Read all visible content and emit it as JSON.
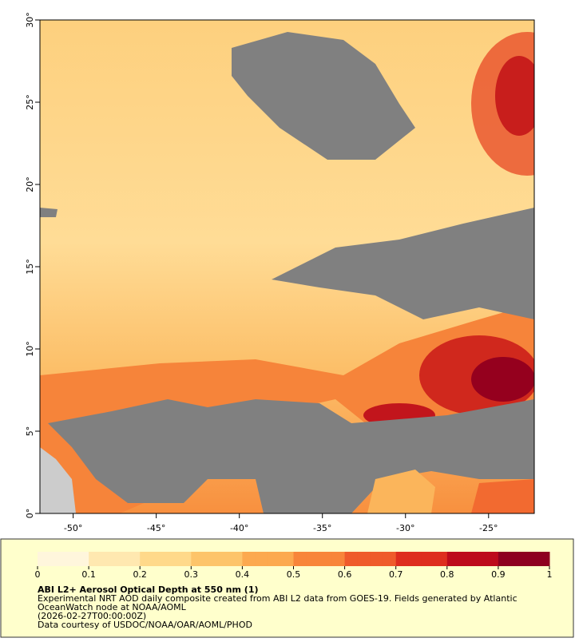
{
  "map": {
    "xlim": [
      -52,
      -22.25
    ],
    "ylim": [
      0,
      30
    ],
    "xticks": [
      {
        "value": -50,
        "label": "-50°"
      },
      {
        "value": -45,
        "label": "-45°"
      },
      {
        "value": -40,
        "label": "-40°"
      },
      {
        "value": -35,
        "label": "-35°"
      },
      {
        "value": -30,
        "label": "-30°"
      },
      {
        "value": -25,
        "label": "-25°"
      }
    ],
    "yticks": [
      {
        "value": 0,
        "label": "0°"
      },
      {
        "value": 5,
        "label": "5°"
      },
      {
        "value": 10,
        "label": "10°"
      },
      {
        "value": 15,
        "label": "15°"
      },
      {
        "value": 20,
        "label": "20°"
      },
      {
        "value": 25,
        "label": "25°"
      },
      {
        "value": 30,
        "label": "30°"
      }
    ]
  },
  "colorbar": {
    "range": [
      0,
      1
    ],
    "ticks": [
      0,
      0.1,
      0.2,
      0.3,
      0.4,
      0.5,
      0.6,
      0.7,
      0.8,
      0.9,
      1
    ],
    "colors": [
      "#fff6dc",
      "#ffe8b0",
      "#ffd98a",
      "#fdc46a",
      "#fca94f",
      "#f8853a",
      "#ef5b2b",
      "#de2d1e",
      "#bd0a1c",
      "#8e0020"
    ]
  },
  "legend": {
    "title": "ABI L2+ Aerosol Optical Depth at 550 nm (1)",
    "lines": [
      "Experimental NRT AOD daily composite created from ABI L2 data from GOES-19. Fields generated by Atlantic",
      "OceanWatch node at NOAA/AOML",
      "(2026-02-27T00:00:00Z)",
      "Data courtesy of USDOC/NOAA/OAR/AOML/PHOD"
    ]
  }
}
